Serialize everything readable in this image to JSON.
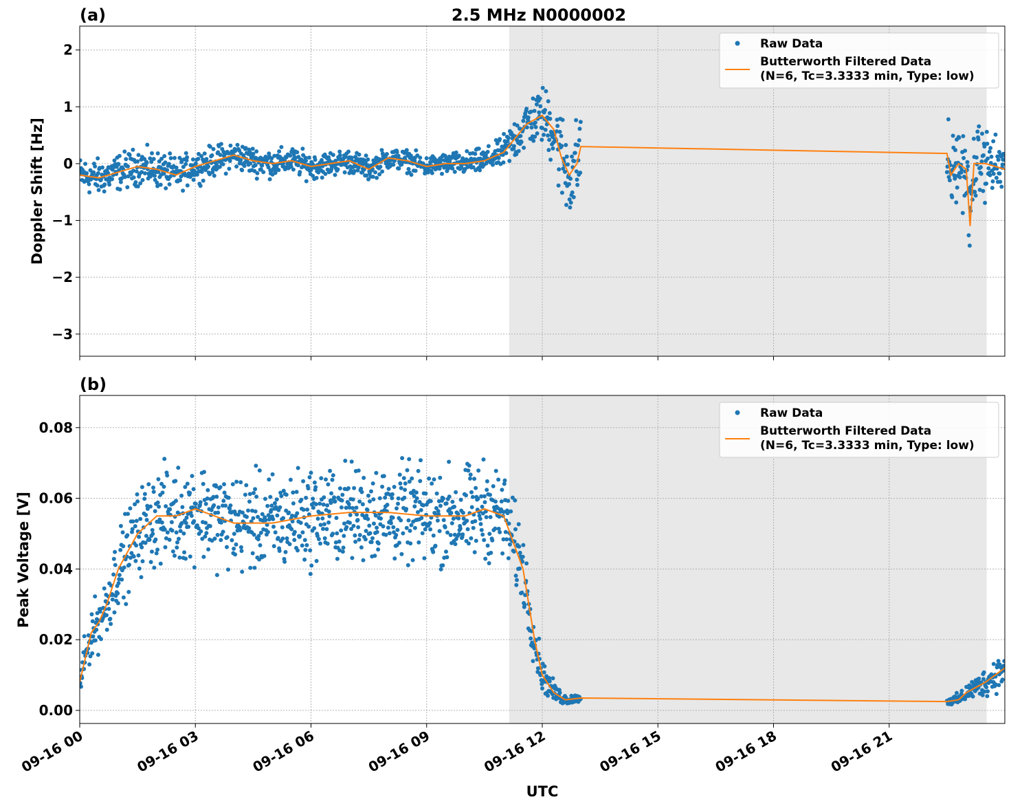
{
  "chart_data": [
    {
      "type": "line",
      "panel_label": "(a)",
      "title": "2.5 MHz N0000002",
      "xlabel": "",
      "ylabel": "Doppler Shift [Hz]",
      "xlim_hours": [
        0,
        24
      ],
      "ylim": [
        -3.39,
        2.42
      ],
      "yticks": [
        2,
        1,
        0,
        -1,
        -2,
        -3
      ],
      "ytick_labels": [
        "2",
        "1",
        "0",
        "−1",
        "−2",
        "−3"
      ],
      "shaded_region_hours": [
        11.14,
        23.53
      ],
      "grid": true,
      "legend_position": "top-right",
      "legend": [
        "Raw Data",
        "Butterworth Filtered Data",
        "(N=6, Tc=3.3333 min, Type: low)"
      ],
      "data_segments_hours": [
        [
          0,
          13
        ],
        [
          22.5,
          24
        ]
      ],
      "filtered": {
        "x": [
          0,
          0.5,
          1,
          1.5,
          2,
          2.5,
          3,
          3.5,
          4,
          4.5,
          5,
          5.5,
          6,
          6.5,
          7,
          7.5,
          8,
          8.5,
          9,
          9.5,
          10,
          10.5,
          11,
          11.3,
          11.6,
          12,
          12.3,
          12.5,
          12.7,
          12.9,
          13,
          22.5,
          22.6,
          22.8,
          23,
          23.1,
          23.2,
          23.5,
          24
        ],
        "y": [
          -0.2,
          -0.25,
          -0.15,
          -0.05,
          -0.1,
          -0.2,
          -0.05,
          0.05,
          0.15,
          0.05,
          0,
          0.05,
          -0.05,
          0,
          0.05,
          -0.1,
          0.1,
          0.05,
          -0.05,
          0,
          0,
          0.05,
          0.2,
          0.45,
          0.7,
          0.85,
          0.6,
          0.1,
          -0.2,
          0,
          0.3,
          0.18,
          -0.2,
          0,
          -0.1,
          -1.1,
          0,
          0,
          -0.1
        ]
      },
      "raw_spread": {
        "x": [
          0,
          2,
          3,
          9,
          10.8,
          11.3,
          12,
          12.5,
          13,
          22.5,
          24
        ],
        "half_width": [
          0.35,
          0.35,
          0.3,
          0.2,
          0.25,
          0.45,
          0.55,
          0.9,
          0.9,
          0.8,
          0.6
        ]
      }
    },
    {
      "type": "line",
      "panel_label": "(b)",
      "xlabel": "UTC",
      "ylabel": "Peak Voltage [V]",
      "xlim_hours": [
        0,
        24
      ],
      "ylim": [
        -0.0037,
        0.0891
      ],
      "yticks": [
        0.08,
        0.06,
        0.04,
        0.02,
        0.0
      ],
      "ytick_labels": [
        "0.08",
        "0.06",
        "0.04",
        "0.02",
        "0.00"
      ],
      "xtick_hours": [
        0,
        3,
        6,
        9,
        12,
        15,
        18,
        21
      ],
      "xtick_labels": [
        "09-16 00",
        "09-16 03",
        "09-16 06",
        "09-16 09",
        "09-16 12",
        "09-16 15",
        "09-16 18",
        "09-16 21"
      ],
      "shaded_region_hours": [
        11.14,
        23.53
      ],
      "grid": true,
      "legend_position": "top-right",
      "legend": [
        "Raw Data",
        "Butterworth Filtered Data",
        "(N=6, Tc=3.3333 min, Type: low)"
      ],
      "data_segments_hours": [
        [
          0,
          13
        ],
        [
          22.5,
          24
        ]
      ],
      "filtered": {
        "x": [
          0,
          0.3,
          0.5,
          0.7,
          1,
          1.5,
          2,
          2.5,
          3,
          3.5,
          4,
          5,
          6,
          7,
          8,
          9,
          10,
          10.5,
          11,
          11.5,
          11.8,
          12,
          12.3,
          12.6,
          13,
          22.5,
          22.8,
          23,
          23.5,
          24
        ],
        "y": [
          0.008,
          0.022,
          0.025,
          0.03,
          0.04,
          0.05,
          0.055,
          0.055,
          0.057,
          0.055,
          0.053,
          0.053,
          0.055,
          0.056,
          0.056,
          0.055,
          0.055,
          0.057,
          0.055,
          0.04,
          0.02,
          0.01,
          0.005,
          0.003,
          0.0035,
          0.0025,
          0.003,
          0.005,
          0.008,
          0.012
        ]
      },
      "raw_spread": {
        "x": [
          0,
          1,
          2,
          10.8,
          11.5,
          12,
          12.5,
          13,
          22.5,
          24
        ],
        "half_width": [
          0.006,
          0.012,
          0.015,
          0.015,
          0.012,
          0.005,
          0.002,
          0.001,
          0.001,
          0.006
        ]
      }
    }
  ],
  "colors": {
    "raw": "#1f77b4",
    "filtered": "#ff7f0e",
    "shade": "#e8e8e8"
  }
}
